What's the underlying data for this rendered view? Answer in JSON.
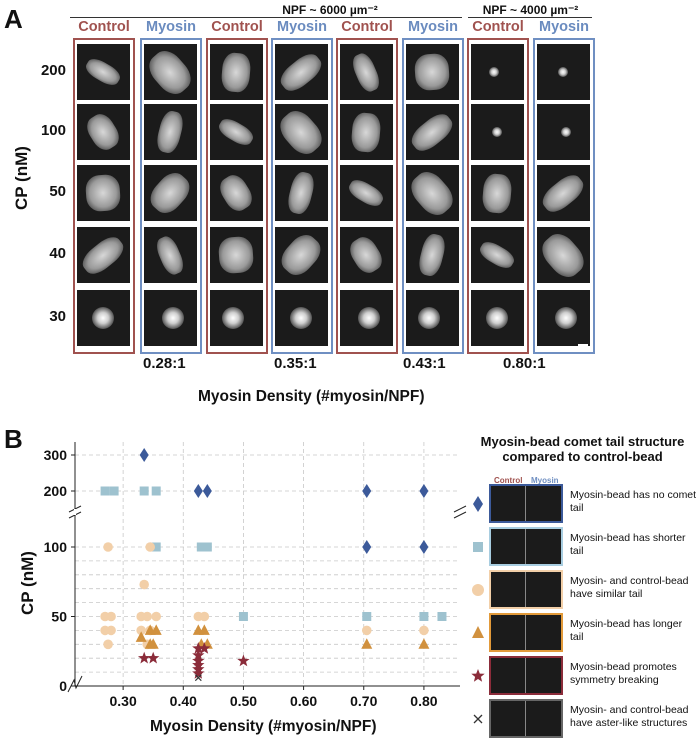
{
  "panel_a": {
    "letter": "A",
    "npf_groups": [
      {
        "label": "NPF ~ 6000 µm⁻²"
      },
      {
        "label": "NPF ~ 4000 µm⁻²"
      }
    ],
    "column_headers": {
      "control": "Control",
      "myosin": "Myosin"
    },
    "row_labels": [
      "200",
      "100",
      "50",
      "40",
      "30"
    ],
    "cp_axis_label": "CP (nM)",
    "ratios": [
      "0.28:1",
      "0.35:1",
      "0.43:1",
      "0.80:1"
    ],
    "x_axis_label": "Myosin Density (#myosin/NPF)"
  },
  "panel_b": {
    "letter": "B",
    "legend": {
      "title": "Myosin-bead comet tail structure compared to control-bead",
      "head_control": "Control",
      "head_myosin": "Myosin",
      "items": [
        {
          "text": "Myosin-bead has no comet tail",
          "marker": "diamond",
          "color": "#3c5a9a"
        },
        {
          "text": "Myosin-bead has shorter tail",
          "marker": "square",
          "color": "#9ec2cf"
        },
        {
          "text": "Myosin- and control-bead have similar tail",
          "marker": "circle",
          "color": "#f2cfa8"
        },
        {
          "text": "Myosin-bead has longer tail",
          "marker": "triangle",
          "color": "#d1913e"
        },
        {
          "text": "Myosin-bead promotes symmetry breaking",
          "marker": "star",
          "color": "#8b2c3a"
        },
        {
          "text": "Myosin- and control-bead have aster-like structures",
          "marker": "x",
          "color": "#333333"
        }
      ]
    },
    "chart_data": {
      "type": "scatter",
      "xlabel": "Myosin Density (#myosin/NPF)",
      "ylabel": "CP (nM)",
      "x_ticks": [
        "0.30",
        "0.40",
        "0.50",
        "0.60",
        "0.70",
        "0.80"
      ],
      "y_ticks": [
        "0",
        "50",
        "100",
        "200",
        "300"
      ],
      "xlim": [
        0.22,
        0.86
      ],
      "y_axis_broken": true,
      "grid": true,
      "series": [
        {
          "marker": "diamond",
          "points": [
            [
              0.335,
              300
            ],
            [
              0.425,
              200
            ],
            [
              0.44,
              200
            ],
            [
              0.705,
              200
            ],
            [
              0.8,
              200
            ],
            [
              0.705,
              100
            ],
            [
              0.8,
              100
            ]
          ]
        },
        {
          "marker": "square",
          "points": [
            [
              0.27,
              200
            ],
            [
              0.285,
              200
            ],
            [
              0.335,
              200
            ],
            [
              0.355,
              200
            ],
            [
              0.355,
              100
            ],
            [
              0.43,
              100
            ],
            [
              0.44,
              100
            ],
            [
              0.5,
              50
            ],
            [
              0.705,
              50
            ],
            [
              0.8,
              50
            ],
            [
              0.83,
              50
            ]
          ]
        },
        {
          "marker": "circle",
          "points": [
            [
              0.275,
              100
            ],
            [
              0.345,
              100
            ],
            [
              0.335,
              73
            ],
            [
              0.27,
              50
            ],
            [
              0.28,
              50
            ],
            [
              0.33,
              50
            ],
            [
              0.34,
              50
            ],
            [
              0.355,
              50
            ],
            [
              0.425,
              50
            ],
            [
              0.435,
              50
            ],
            [
              0.27,
              40
            ],
            [
              0.28,
              40
            ],
            [
              0.33,
              40
            ],
            [
              0.345,
              40
            ],
            [
              0.275,
              30
            ],
            [
              0.34,
              30
            ],
            [
              0.705,
              40
            ],
            [
              0.8,
              40
            ]
          ]
        },
        {
          "marker": "triangle",
          "points": [
            [
              0.33,
              35
            ],
            [
              0.345,
              40
            ],
            [
              0.355,
              40
            ],
            [
              0.345,
              30
            ],
            [
              0.35,
              30
            ],
            [
              0.425,
              40
            ],
            [
              0.435,
              40
            ],
            [
              0.43,
              30
            ],
            [
              0.44,
              30
            ],
            [
              0.705,
              30
            ],
            [
              0.8,
              30
            ]
          ]
        },
        {
          "marker": "star",
          "points": [
            [
              0.335,
              20
            ],
            [
              0.35,
              20
            ],
            [
              0.425,
              27
            ],
            [
              0.435,
              27
            ],
            [
              0.425,
              22
            ],
            [
              0.425,
              18
            ],
            [
              0.425,
              15
            ],
            [
              0.425,
              12
            ],
            [
              0.425,
              9
            ],
            [
              0.5,
              18
            ]
          ]
        },
        {
          "marker": "x",
          "points": [
            [
              0.425,
              6
            ]
          ]
        }
      ]
    }
  },
  "colors": {
    "control": "#a0524f",
    "myosin": "#6f8fc2"
  }
}
